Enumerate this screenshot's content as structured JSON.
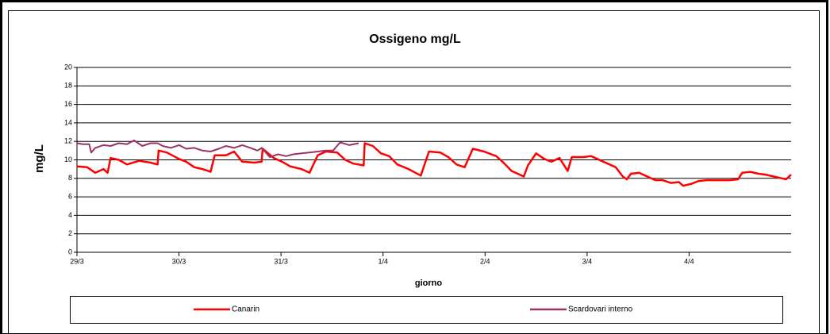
{
  "chart_data": {
    "type": "line",
    "title": "Ossigeno mg/L",
    "x_label": "giorno",
    "y_label": "mg/L",
    "xlim": [
      0,
      7
    ],
    "xticks": [
      {
        "value": 0,
        "label": "29/3"
      },
      {
        "value": 1,
        "label": "30/3"
      },
      {
        "value": 2,
        "label": "31/3"
      },
      {
        "value": 3,
        "label": "1/4"
      },
      {
        "value": 4,
        "label": "2/4"
      },
      {
        "value": 5,
        "label": "3/4"
      },
      {
        "value": 6,
        "label": "4/4"
      }
    ],
    "ylim": [
      0,
      20
    ],
    "yticks": [
      0,
      2,
      4,
      6,
      8,
      10,
      12,
      14,
      16,
      18,
      20
    ],
    "grid": true,
    "legend": "bottom",
    "series": [
      {
        "name": "Canarin",
        "color": "#ff0000",
        "x": [
          0,
          0.1,
          0.18,
          0.26,
          0.3,
          0.33,
          0.41,
          0.49,
          0.61,
          0.72,
          0.79,
          0.8,
          0.88,
          1.0,
          1.07,
          1.15,
          1.23,
          1.31,
          1.35,
          1.46,
          1.54,
          1.62,
          1.74,
          1.81,
          1.82,
          1.93,
          2.01,
          2.09,
          2.2,
          2.28,
          2.36,
          2.44,
          2.55,
          2.63,
          2.71,
          2.81,
          2.82,
          2.9,
          2.98,
          3.06,
          3.14,
          3.25,
          3.37,
          3.45,
          3.56,
          3.64,
          3.72,
          3.8,
          3.88,
          3.99,
          4.11,
          4.19,
          4.26,
          4.34,
          4.38,
          4.42,
          4.5,
          4.58,
          4.65,
          4.73,
          4.81,
          4.85,
          4.96,
          5.04,
          5.16,
          5.28,
          5.35,
          5.39,
          5.43,
          5.51,
          5.59,
          5.67,
          5.74,
          5.82,
          5.9,
          5.94,
          6.02,
          6.09,
          6.17,
          6.29,
          6.4,
          6.48,
          6.52,
          6.6,
          6.68,
          6.75,
          6.83,
          6.91,
          6.95,
          7.0
        ],
        "values": [
          9.3,
          9.2,
          8.6,
          9.0,
          8.6,
          10.2,
          10.0,
          9.5,
          9.9,
          9.7,
          9.5,
          11.0,
          10.8,
          10.1,
          9.8,
          9.2,
          9.0,
          8.7,
          10.5,
          10.5,
          10.9,
          9.8,
          9.7,
          9.8,
          11.2,
          10.2,
          9.8,
          9.3,
          9.0,
          8.6,
          10.5,
          10.9,
          10.8,
          10.0,
          9.6,
          9.4,
          11.8,
          11.5,
          10.7,
          10.4,
          9.5,
          9.0,
          8.3,
          10.9,
          10.8,
          10.3,
          9.5,
          9.2,
          11.2,
          10.9,
          10.4,
          9.6,
          8.8,
          8.4,
          8.2,
          9.4,
          10.7,
          10.1,
          9.8,
          10.2,
          8.8,
          10.3,
          10.3,
          10.4,
          9.8,
          9.2,
          8.2,
          7.9,
          8.5,
          8.6,
          8.2,
          7.8,
          7.8,
          7.5,
          7.6,
          7.2,
          7.4,
          7.7,
          7.8,
          7.8,
          7.8,
          7.9,
          8.6,
          8.7,
          8.5,
          8.4,
          8.2,
          8.0,
          7.9,
          8.4
        ]
      },
      {
        "name": "Scardovari interno",
        "color": "#993366",
        "x": [
          0,
          0.06,
          0.12,
          0.14,
          0.18,
          0.26,
          0.33,
          0.41,
          0.49,
          0.56,
          0.64,
          0.72,
          0.79,
          0.84,
          0.92,
          1.0,
          1.07,
          1.15,
          1.23,
          1.31,
          1.39,
          1.46,
          1.54,
          1.62,
          1.7,
          1.77,
          1.81,
          1.89,
          1.97,
          2.05,
          2.12,
          2.2,
          2.28,
          2.36,
          2.44,
          2.51,
          2.58,
          2.67,
          2.76
        ],
        "values": [
          11.8,
          11.7,
          11.7,
          10.8,
          11.3,
          11.6,
          11.5,
          11.8,
          11.7,
          12.1,
          11.5,
          11.8,
          11.8,
          11.5,
          11.3,
          11.6,
          11.2,
          11.3,
          11.0,
          10.9,
          11.2,
          11.5,
          11.3,
          11.6,
          11.3,
          11.0,
          11.3,
          10.3,
          10.6,
          10.4,
          10.6,
          10.7,
          10.8,
          10.9,
          11.0,
          11.0,
          11.9,
          11.6,
          11.8
        ]
      }
    ]
  }
}
